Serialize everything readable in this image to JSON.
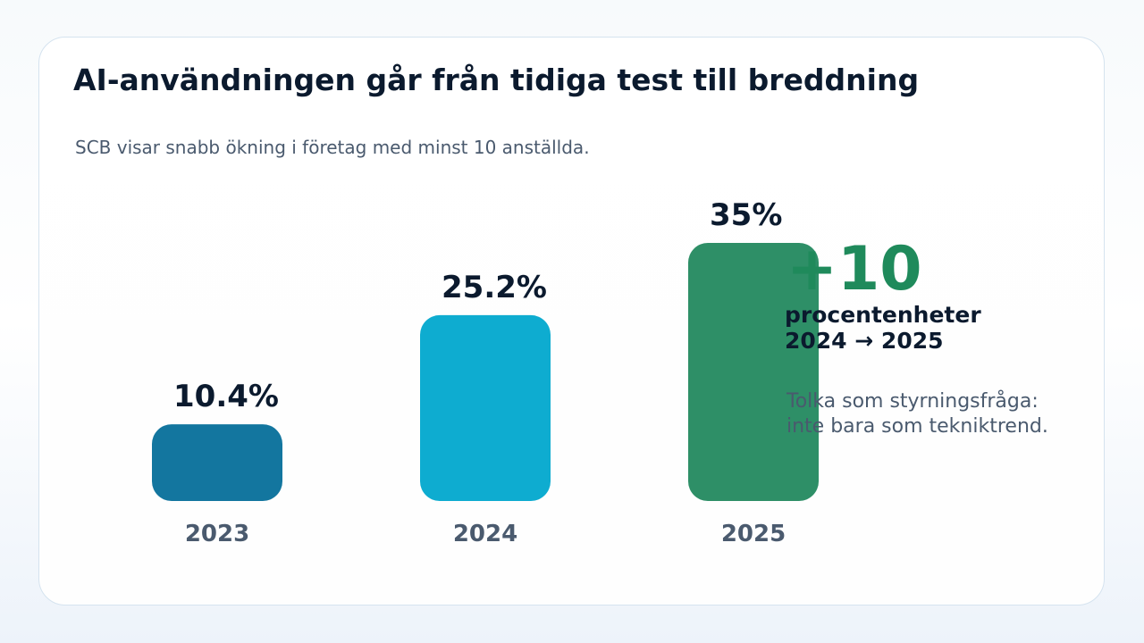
{
  "title": "AI-användningen går från tidiga test till breddning",
  "subtitle": "SCB visar snabb ökning i företag med minst 10 anställda.",
  "highlight": {
    "value": "+10",
    "unit_line1": "procentenheter",
    "unit_line2": "2024 → 2025",
    "note_line1": "Tolka som styrningsfråga:",
    "note_line2": "inte bara som tekniktrend."
  },
  "colors": {
    "bar_2023": "#13769f",
    "bar_2024": "#0eacd0",
    "bar_2025": "#2e8f67",
    "accent": "#1f8a5b",
    "label_dark": "#0b1a2e",
    "label_muted": "#4a5a6e"
  },
  "chart_data": {
    "type": "bar",
    "title": "AI-användningen går från tidiga test till breddning",
    "categories": [
      "2023",
      "2024",
      "2025"
    ],
    "values": [
      10.4,
      25.2,
      35
    ],
    "value_labels": [
      "10.4%",
      "25.2%",
      "35%"
    ],
    "ylim": [
      0,
      35
    ],
    "grid": false,
    "xlabel": "",
    "ylabel": ""
  }
}
